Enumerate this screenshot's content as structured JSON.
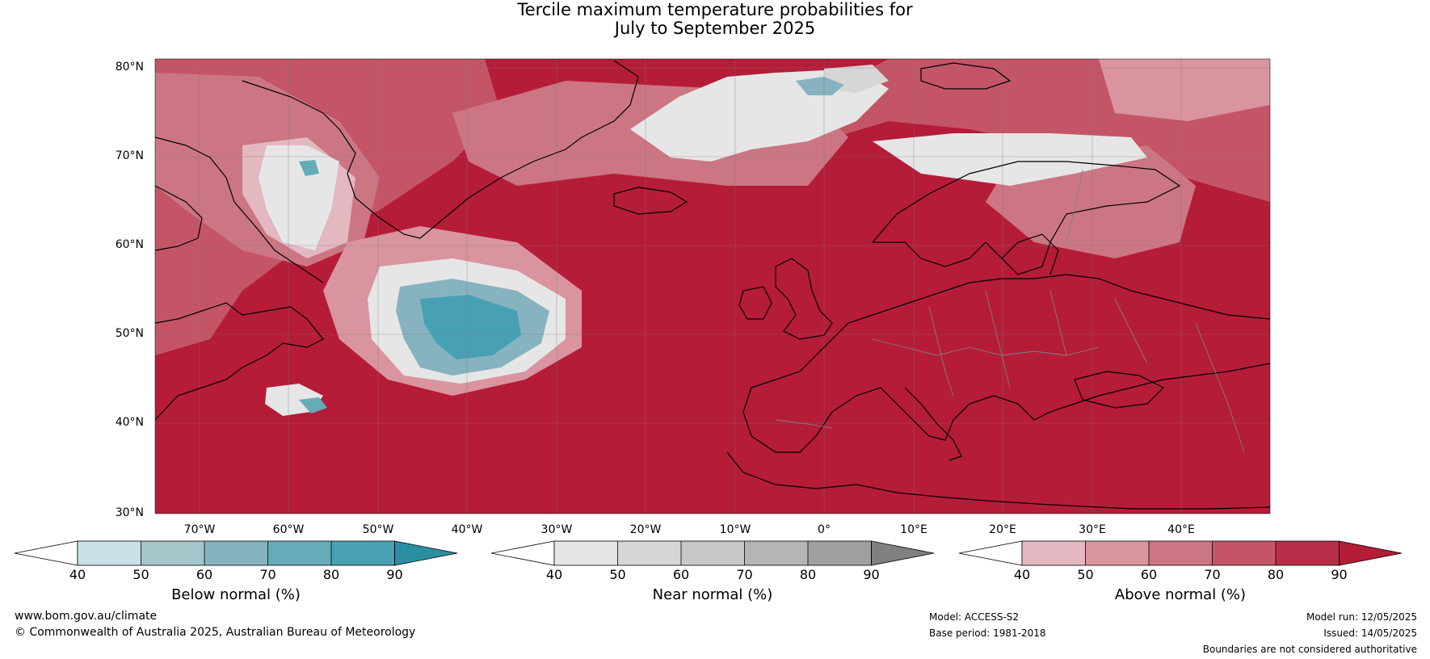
{
  "title": {
    "line1": "Tercile maximum temperature probabilities for",
    "line2": "July to September 2025"
  },
  "map": {
    "lat_labels": [
      "80°N",
      "70°N",
      "60°N",
      "50°N",
      "40°N",
      "30°N"
    ],
    "lon_labels": [
      "70°W",
      "60°W",
      "50°W",
      "40°W",
      "30°W",
      "20°W",
      "10°W",
      "0°",
      "10°E",
      "20°E",
      "30°E",
      "40°E"
    ],
    "colors": {
      "above_base": "#b51c38",
      "ocean_dark": "#b51c38",
      "coast": "#000000",
      "border": "#808080"
    }
  },
  "colorbars": [
    {
      "label": "Below normal (%)",
      "ticks": [
        "40",
        "50",
        "60",
        "70",
        "80",
        "90"
      ],
      "colors": [
        "#ffffff",
        "#c8e1e8",
        "#a6c6cc",
        "#87b3c0",
        "#65abb8",
        "#47a1b3",
        "#2b8fa3"
      ]
    },
    {
      "label": "Near normal (%)",
      "ticks": [
        "40",
        "50",
        "60",
        "70",
        "80",
        "90"
      ],
      "colors": [
        "#ffffff",
        "#e6e6e6",
        "#d6d6d6",
        "#c8c8c8",
        "#b5b5b5",
        "#a0a0a0",
        "#808080"
      ]
    },
    {
      "label": "Above normal (%)",
      "ticks": [
        "40",
        "50",
        "60",
        "70",
        "80",
        "90"
      ],
      "colors": [
        "#ffffff",
        "#e3b8c0",
        "#d9949f",
        "#cc7683",
        "#c45567",
        "#b82e48",
        "#b51c38"
      ]
    }
  ],
  "footer": {
    "website": "www.bom.gov.au/climate",
    "copyright": "© Commonwealth of Australia 2025, Australian Bureau of Meteorology",
    "model": "Model: ACCESS-S2",
    "base_period": "Base period: 1981-2018",
    "model_run": "Model run: 12/05/2025",
    "issued": "Issued: 14/05/2025",
    "disclaimer": "Boundaries are not considered authoritative"
  }
}
